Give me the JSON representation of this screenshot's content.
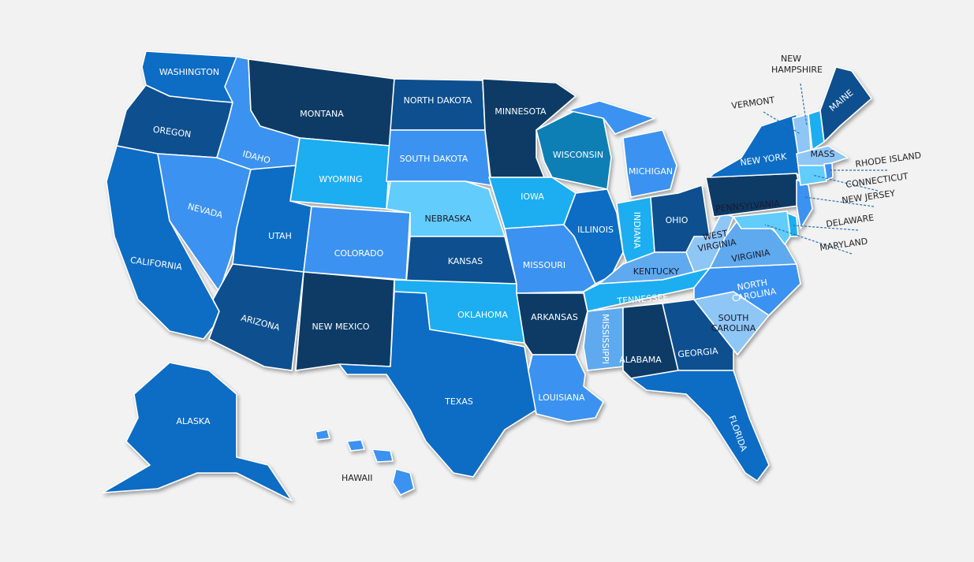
{
  "map": {
    "palette": {
      "navy": "#0b3a66",
      "dark": "#0e4f8f",
      "medium": "#0c6cc4",
      "bright": "#3a92f0",
      "sky": "#1aaef0",
      "cyan": "#62ccfd",
      "teal": "#0a7fb5",
      "pale": "#8ec6f6",
      "lightblue": "#5ea9ef"
    },
    "states": {
      "WA": {
        "label": "WASHINGTON",
        "fill": "#0c6cc4"
      },
      "OR": {
        "label": "OREGON",
        "fill": "#0e4f8f"
      },
      "CA": {
        "label": "CALIFORNIA",
        "fill": "#0c6cc4"
      },
      "NV": {
        "label": "NEVADA",
        "fill": "#3a92f0"
      },
      "ID": {
        "label": "IDAHO",
        "fill": "#3a92f0"
      },
      "MT": {
        "label": "MONTANA",
        "fill": "#0b3a66"
      },
      "WY": {
        "label": "WYOMING",
        "fill": "#1aaef0"
      },
      "UT": {
        "label": "UTAH",
        "fill": "#0c6cc4"
      },
      "CO": {
        "label": "COLORADO",
        "fill": "#3a92f0"
      },
      "AZ": {
        "label": "ARIZONA",
        "fill": "#0e4f8f"
      },
      "NM": {
        "label": "NEW MEXICO",
        "fill": "#0b3a66"
      },
      "ND": {
        "label": "NORTH DAKOTA",
        "fill": "#0e4f8f"
      },
      "SD": {
        "label": "SOUTH DAKOTA",
        "fill": "#3a92f0"
      },
      "NE": {
        "label": "NEBRASKA",
        "fill": "#62ccfd"
      },
      "KS": {
        "label": "KANSAS",
        "fill": "#0e4f8f"
      },
      "OK": {
        "label": "OKLAHOMA",
        "fill": "#1aaef0"
      },
      "TX": {
        "label": "TEXAS",
        "fill": "#0c6cc4"
      },
      "MN": {
        "label": "MINNESOTA",
        "fill": "#0b3a66"
      },
      "IA": {
        "label": "IOWA",
        "fill": "#1aaef0"
      },
      "MO": {
        "label": "MISSOURI",
        "fill": "#3a92f0"
      },
      "AR": {
        "label": "ARKANSAS",
        "fill": "#0b3a66"
      },
      "LA": {
        "label": "LOUISIANA",
        "fill": "#3a92f0"
      },
      "WI": {
        "label": "WISCONSIN",
        "fill": "#0a7fb5"
      },
      "IL": {
        "label": "ILLINOIS",
        "fill": "#0c6cc4"
      },
      "MI": {
        "label": "MICHIGAN",
        "fill": "#3a92f0"
      },
      "IN": {
        "label": "INDIANA",
        "fill": "#1aaef0"
      },
      "OH": {
        "label": "OHIO",
        "fill": "#0e4f8f"
      },
      "KY": {
        "label": "KENTUCKY",
        "fill": "#5ea9ef"
      },
      "TN": {
        "label": "TENNESSEE",
        "fill": "#1aaef0"
      },
      "MS": {
        "label": "MISSISSIPPI",
        "fill": "#5ea9ef"
      },
      "AL": {
        "label": "ALABAMA",
        "fill": "#0b3a66"
      },
      "GA": {
        "label": "GEORGIA",
        "fill": "#0e4f8f"
      },
      "FL": {
        "label": "FLORIDA",
        "fill": "#0c6cc4"
      },
      "SC": {
        "label": "SOUTH CAROLINA",
        "fill": "#8ec6f6"
      },
      "NC": {
        "label": "NORTH CAROLINA",
        "fill": "#3a92f0"
      },
      "VA": {
        "label": "VIRGINIA",
        "fill": "#5ea9ef"
      },
      "WV": {
        "label": "WEST VIRGINIA",
        "fill": "#8ec6f6"
      },
      "PA": {
        "label": "PENNSYLVANIA",
        "fill": "#0b3a66"
      },
      "NY": {
        "label": "NEW YORK",
        "fill": "#0c6cc4"
      },
      "NJ": {
        "label": "NEW JERSEY",
        "fill": "#3a92f0"
      },
      "DE": {
        "label": "DELAWARE",
        "fill": "#1aaef0"
      },
      "MD": {
        "label": "MARYLAND",
        "fill": "#62ccfd"
      },
      "VT": {
        "label": "VERMONT",
        "fill": "#8ec6f6"
      },
      "NH": {
        "label": "NEW HAMPSHIRE",
        "fill": "#1aaef0"
      },
      "ME": {
        "label": "MAINE",
        "fill": "#0e4f8f"
      },
      "MA": {
        "label": "MASS",
        "fill": "#8ec6f6"
      },
      "CT": {
        "label": "CONNECTICUT",
        "fill": "#62ccfd"
      },
      "RI": {
        "label": "RHODE ISLAND",
        "fill": "#3a92f0"
      },
      "AK": {
        "label": "ALASKA",
        "fill": "#0c6cc4"
      },
      "HI": {
        "label": "HAWAII",
        "fill": "#3a92f0"
      }
    }
  }
}
